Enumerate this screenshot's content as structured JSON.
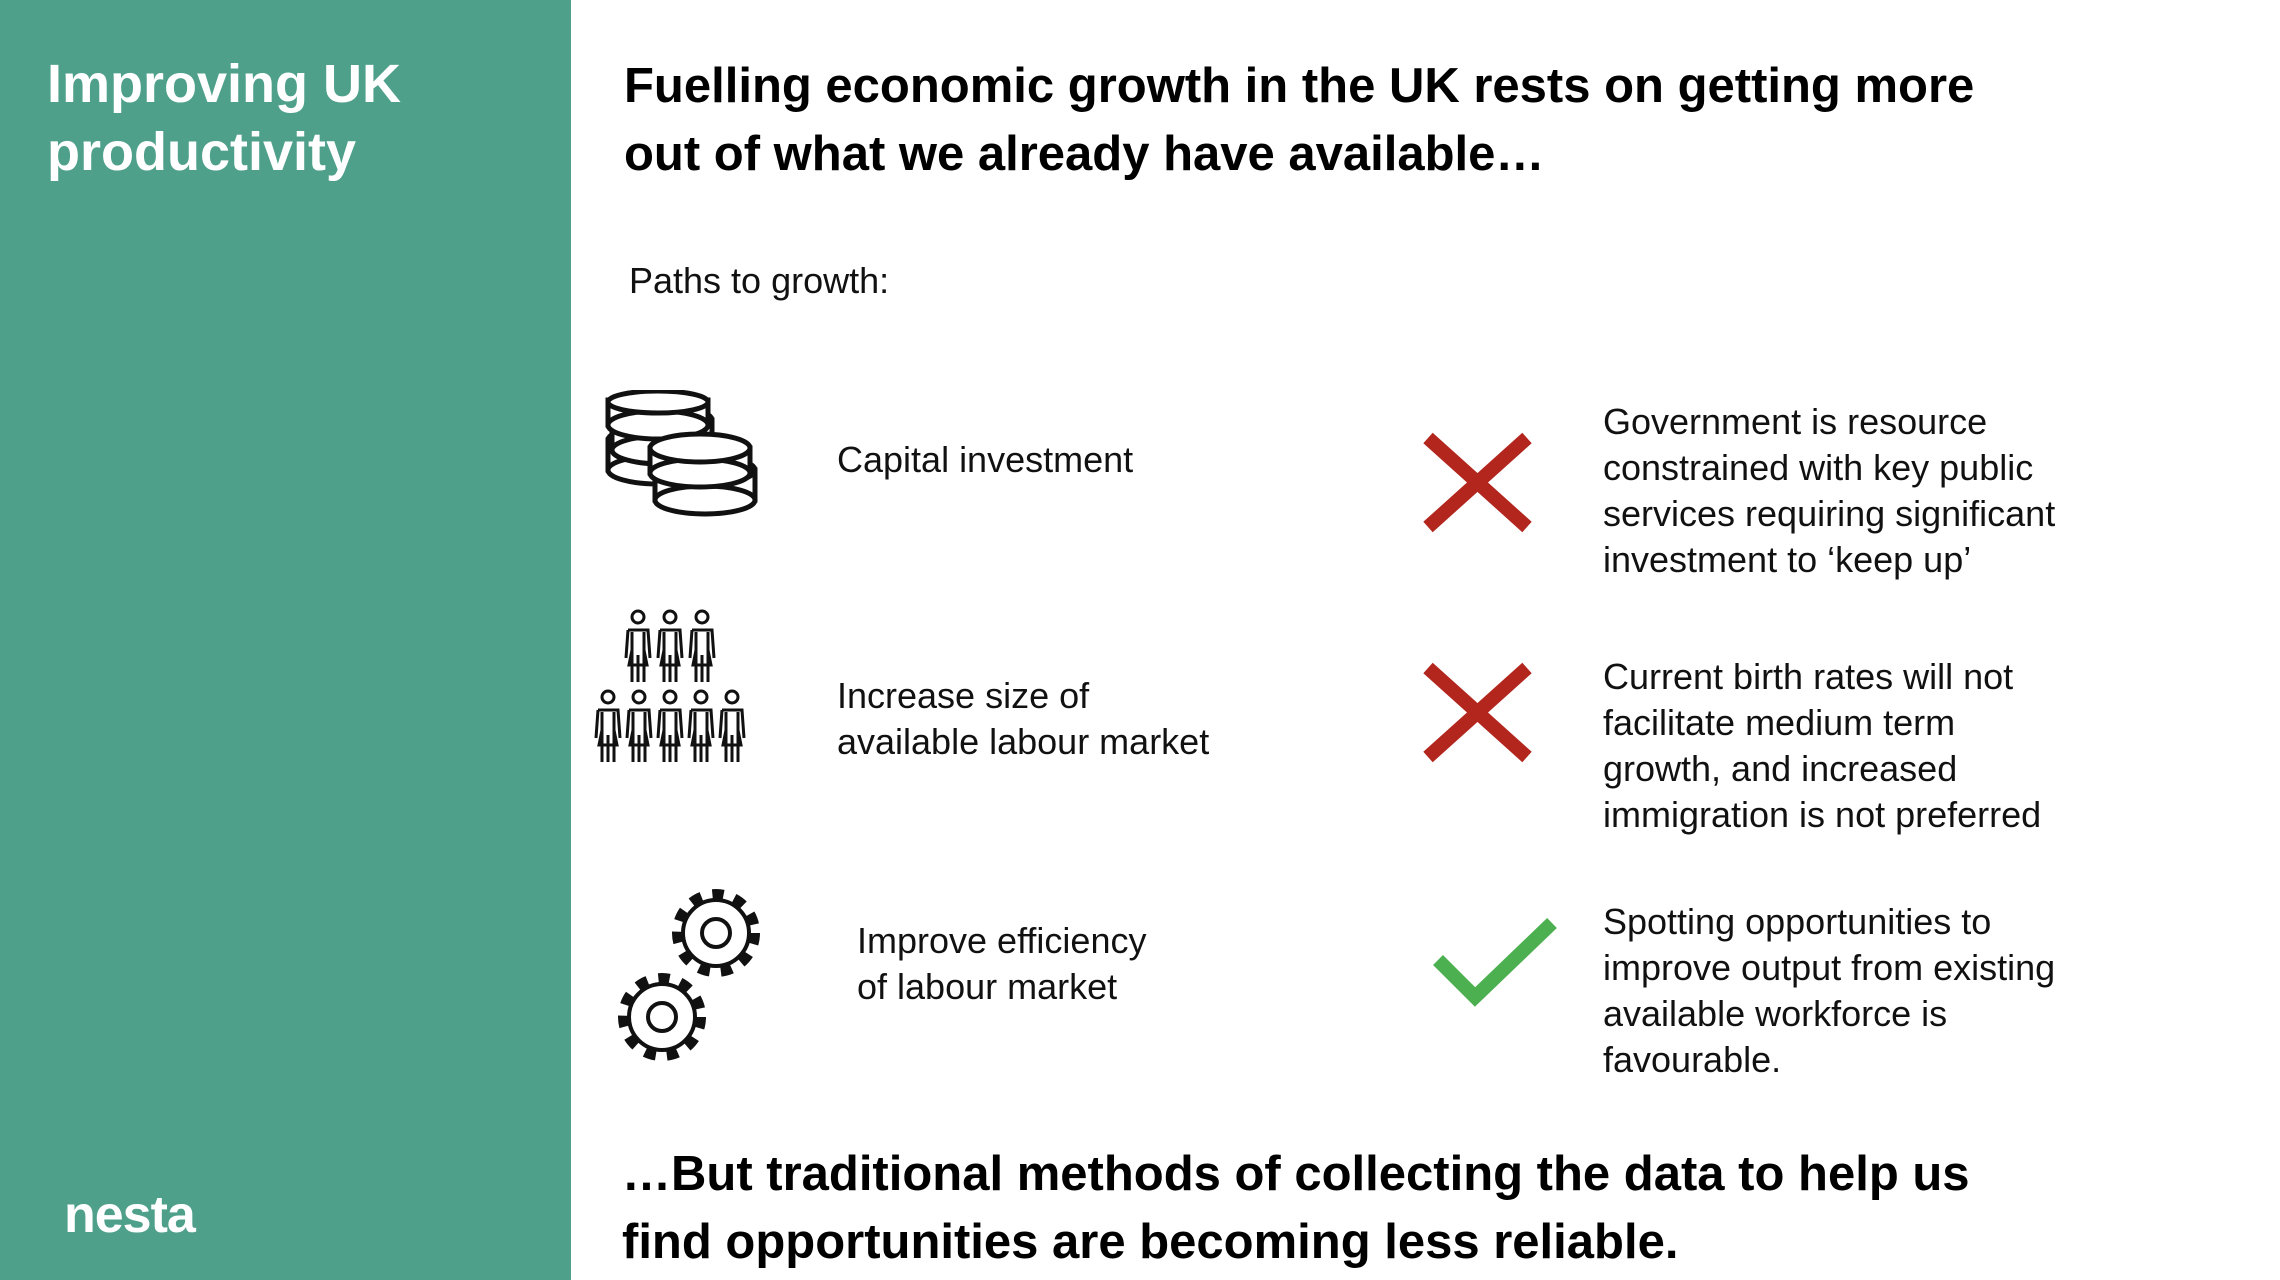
{
  "sidebar": {
    "title": [
      "Improving UK",
      "productivity"
    ],
    "logo": "nesta"
  },
  "header": {
    "title": [
      "Fuelling economic growth in the UK rests on getting more",
      "out of what we already have available…"
    ]
  },
  "subtitle": "Paths to growth:",
  "rows": [
    {
      "label": [
        "Capital investment"
      ],
      "note": [
        "Government is resource",
        "constrained with key public",
        "services requiring significant",
        "investment to ‘keep up’"
      ]
    },
    {
      "label": [
        "Increase size of",
        "available labour market"
      ],
      "note": [
        "Current birth rates will not",
        "facilitate medium term",
        "growth, and increased",
        "immigration is not preferred"
      ]
    },
    {
      "label": [
        "Improve efficiency",
        "of labour market"
      ],
      "note": [
        "Spotting opportunities to",
        "improve output from existing",
        "available workforce is",
        "favourable."
      ]
    }
  ],
  "footer": {
    "text": [
      "…But traditional methods of collecting the data to help us",
      "find opportunities are becoming less reliable."
    ]
  }
}
